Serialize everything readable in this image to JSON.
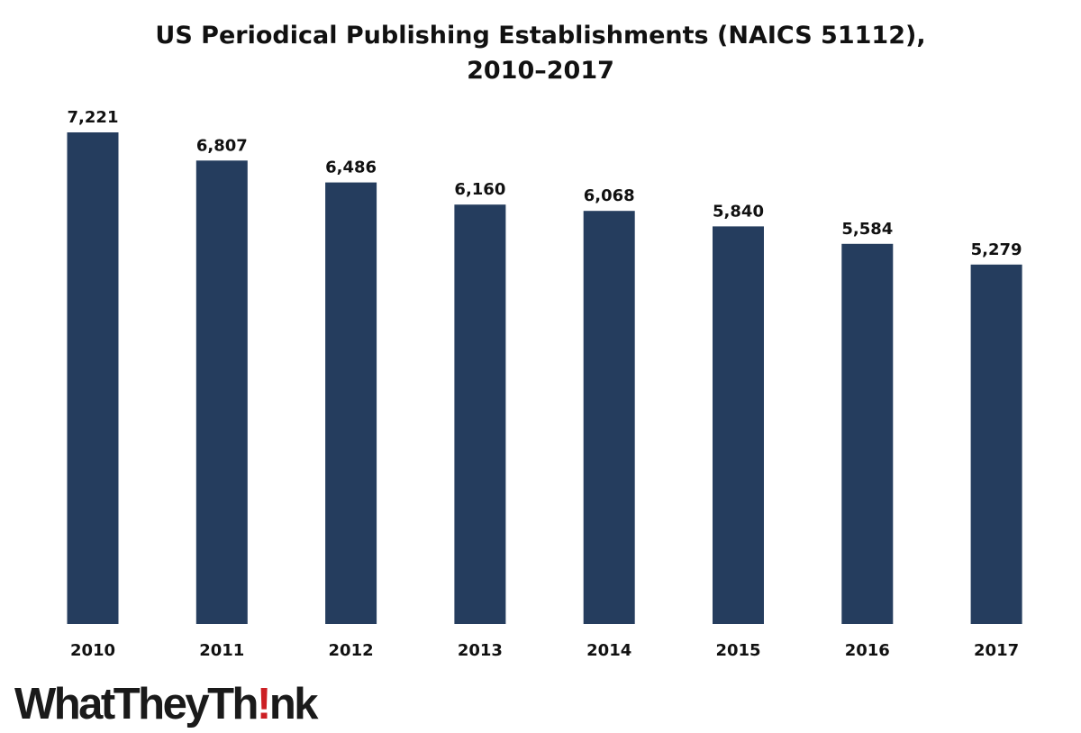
{
  "title_line1": "US Periodical Publishing Establishments (NAICS 51112),",
  "title_line2": "2010–2017",
  "chart_data": {
    "type": "bar",
    "title": "US Periodical Publishing Establishments (NAICS 51112), 2010–2017",
    "categories": [
      "2010",
      "2011",
      "2012",
      "2013",
      "2014",
      "2015",
      "2016",
      "2017"
    ],
    "values": [
      7221,
      6807,
      6486,
      6160,
      6068,
      5840,
      5584,
      5279
    ],
    "value_labels": [
      "7,221",
      "6,807",
      "6,486",
      "6,160",
      "6,068",
      "5,840",
      "5,584",
      "5,279"
    ],
    "xlabel": "",
    "ylabel": "",
    "ylim": [
      0,
      7221
    ],
    "grid": false,
    "legend": "none",
    "bar_color": "#253d5e"
  },
  "logo": {
    "part1": "WhatTheyTh",
    "part2": "!",
    "part3": "nk",
    "accent_color": "#cc1f24"
  }
}
